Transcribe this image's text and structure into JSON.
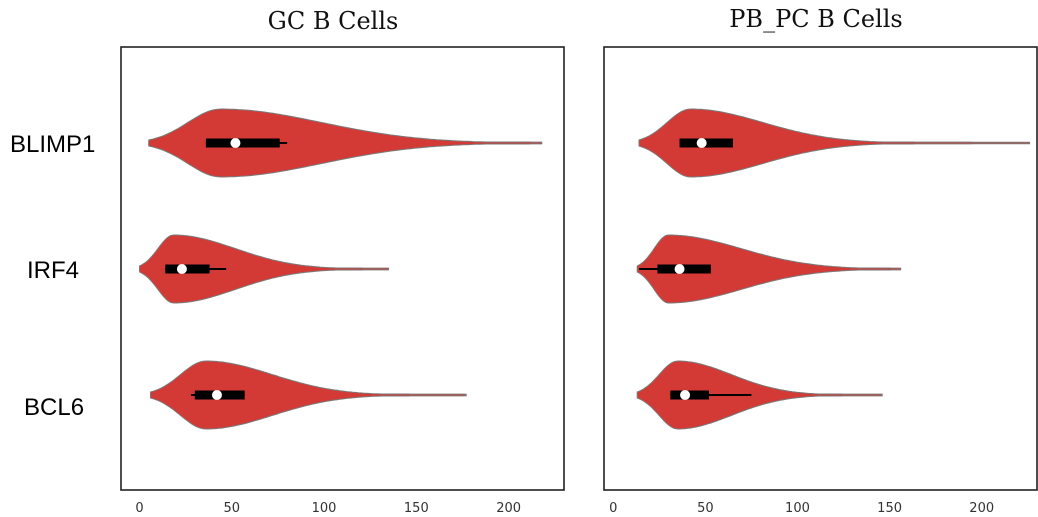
{
  "chart_data": {
    "type": "violin",
    "categories": [
      "BLIMP1",
      "IRF4",
      "BCL6"
    ],
    "xticks": [
      0,
      50,
      100,
      150,
      200
    ],
    "violin_color": "#d33a35",
    "box_color": "#000000",
    "median_color": "#ffffff",
    "panels": [
      {
        "title": "GC B Cells",
        "xlim": [
          -10,
          230
        ],
        "violins": [
          {
            "category": "BLIMP1",
            "min": 5,
            "max": 218,
            "q1": 36,
            "median": 52,
            "q3": 76,
            "whisker_low": 36,
            "whisker_high": 80
          },
          {
            "category": "IRF4",
            "min": 0,
            "max": 135,
            "q1": 14,
            "median": 23,
            "q3": 38,
            "whisker_low": 14,
            "whisker_high": 47
          },
          {
            "category": "BCL6",
            "min": 6,
            "max": 177,
            "q1": 30,
            "median": 42,
            "q3": 57,
            "whisker_low": 28,
            "whisker_high": 57
          }
        ]
      },
      {
        "title": "PB_PC B Cells",
        "xlim": [
          -5,
          230
        ],
        "violins": [
          {
            "category": "BLIMP1",
            "min": 14,
            "max": 226,
            "q1": 36,
            "median": 48,
            "q3": 65,
            "whisker_low": 36,
            "whisker_high": 65
          },
          {
            "category": "IRF4",
            "min": 13,
            "max": 156,
            "q1": 24,
            "median": 36,
            "q3": 53,
            "whisker_low": 14,
            "whisker_high": 53
          },
          {
            "category": "BCL6",
            "min": 13,
            "max": 146,
            "q1": 31,
            "median": 39,
            "q3": 52,
            "whisker_low": 31,
            "whisker_high": 75
          }
        ]
      }
    ]
  }
}
